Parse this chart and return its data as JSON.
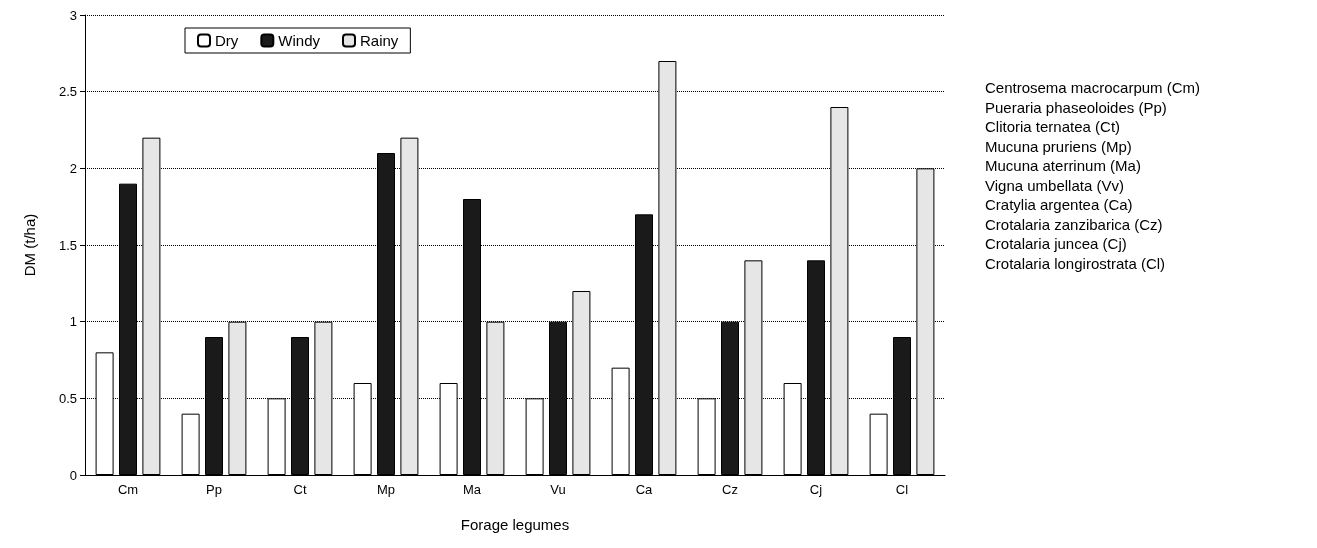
{
  "chart_data": {
    "type": "bar",
    "xlabel": "Forage legumes",
    "ylabel": "DM (t/ha)",
    "categories": [
      "Cm",
      "Pp",
      "Ct",
      "Mp",
      "Ma",
      "Vu",
      "Ca",
      "Cz",
      "Cj",
      "Cl"
    ],
    "series": [
      {
        "name": "Dry",
        "color": "#ffffff",
        "values": [
          0.8,
          0.4,
          0.5,
          0.6,
          0.6,
          0.5,
          0.7,
          0.5,
          0.6,
          0.4
        ]
      },
      {
        "name": "Windy",
        "color": "#1a1a1a",
        "values": [
          1.9,
          0.9,
          0.9,
          2.1,
          1.8,
          1.0,
          1.7,
          1.0,
          1.4,
          0.9
        ]
      },
      {
        "name": "Rainy",
        "color": "#e6e6e6",
        "values": [
          2.2,
          1.0,
          1.0,
          2.2,
          1.0,
          1.2,
          2.7,
          1.4,
          2.4,
          2.0
        ]
      }
    ],
    "ylim": [
      0,
      3
    ],
    "yticks": [
      0,
      0.5,
      1,
      1.5,
      2,
      2.5,
      3
    ],
    "grid": "y",
    "legend": "top left",
    "annotations": [
      "Centrosema macrocarpum (Cm)",
      "Pueraria phaseoloides (Pp)",
      "Clitoria ternatea (Ct)",
      "Mucuna pruriens (Mp)",
      "Mucuna aterrinum (Ma)",
      "Vigna umbellata (Vv)",
      "Cratylia argentea (Ca)",
      "Crotalaria zanzibarica (Cz)",
      "Crotalaria juncea (Cj)",
      "Crotalaria longirostrata (Cl)"
    ]
  }
}
